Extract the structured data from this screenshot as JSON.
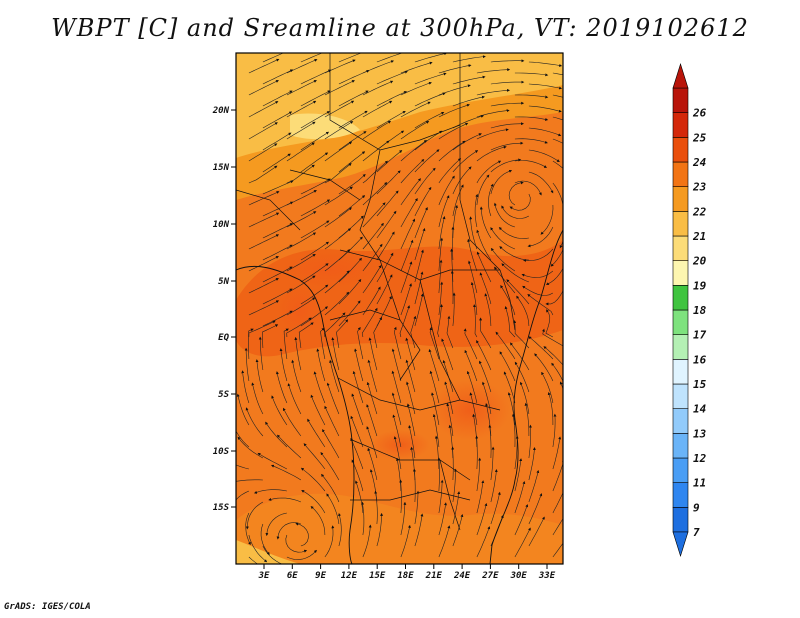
{
  "title": "WBPT [C] and Sreamline at 300hPa, VT: 2019102612",
  "footer": "GrADS: IGES/COLA",
  "map": {
    "lat_labels": [
      "20N",
      "15N",
      "10N",
      "5N",
      "EQ",
      "5S",
      "10S",
      "15S"
    ],
    "lon_labels": [
      "3E",
      "6E",
      "9E",
      "12E",
      "15E",
      "18E",
      "21E",
      "24E",
      "27E",
      "30E",
      "33E"
    ]
  },
  "colorbar": {
    "labels": [
      "7",
      "9",
      "11",
      "12",
      "13",
      "14",
      "15",
      "16",
      "17",
      "18",
      "19",
      "20",
      "21",
      "22",
      "23",
      "24",
      "25",
      "26"
    ],
    "colors": [
      "#1e6fe0",
      "#2f86f0",
      "#4a9ef5",
      "#6ab4f8",
      "#92cbfb",
      "#bfe3fd",
      "#e0f4ff",
      "#b4f0b4",
      "#7ee27e",
      "#3fc43f",
      "#fdf6b0",
      "#fcdc78",
      "#f9bd45",
      "#f59a20",
      "#f27414",
      "#ea4f0c",
      "#d4280a",
      "#b8140a"
    ]
  }
}
